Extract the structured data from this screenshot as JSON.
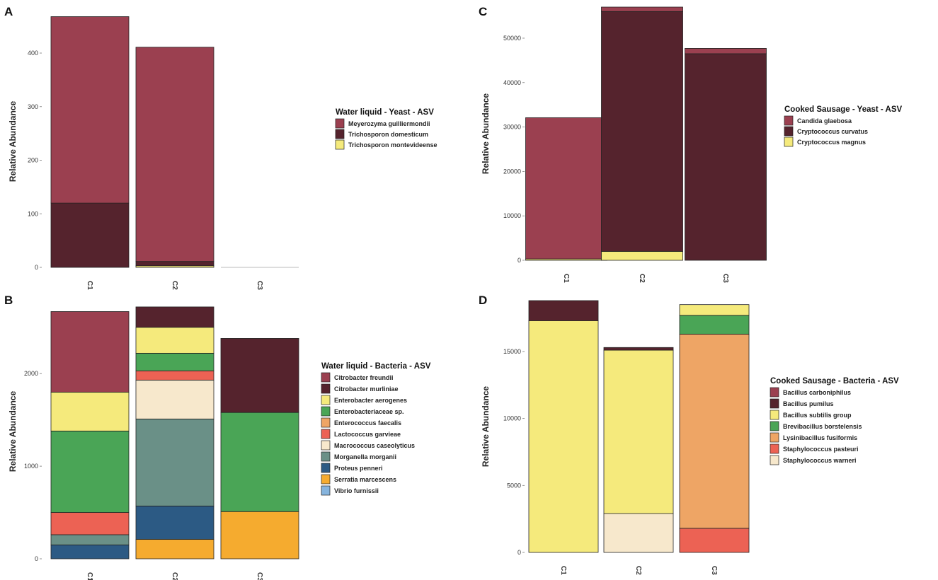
{
  "chart_data": [
    {
      "panel": "A",
      "type": "bar",
      "stacked": true,
      "ylabel": "Relative Abundance",
      "xlabel": "",
      "categories": [
        "C1",
        "C2",
        "C3"
      ],
      "ylim": [
        0,
        470
      ],
      "yticks": [
        0,
        100,
        200,
        300,
        400
      ],
      "legend_title": "Water liquid - Yeast - ASV",
      "legend_position": "right",
      "series": [
        {
          "name": "Meyerozyma guilliermondii",
          "color": "#9b4050",
          "values": [
            348,
            400,
            0
          ]
        },
        {
          "name": "Trichosporon domesticum",
          "color": "#55232d",
          "values": [
            120,
            8,
            0
          ]
        },
        {
          "name": "Trichosporon montevideense",
          "color": "#f5ea7c",
          "values": [
            0,
            3,
            0
          ]
        }
      ]
    },
    {
      "panel": "B",
      "type": "bar",
      "stacked": true,
      "ylabel": "Relative Abundance",
      "xlabel": "",
      "categories": [
        "C1",
        "C2",
        "C3"
      ],
      "ylim": [
        0,
        2750
      ],
      "yticks": [
        0,
        1000,
        2000
      ],
      "legend_title": "Water liquid - Bacteria - ASV",
      "legend_position": "right",
      "series": [
        {
          "name": "Citrobacter freundii",
          "color": "#9b4050",
          "values": [
            870,
            0,
            0
          ]
        },
        {
          "name": "Citrobacter murliniae",
          "color": "#55232d",
          "values": [
            0,
            220,
            800
          ]
        },
        {
          "name": "Enterobacter aerogenes",
          "color": "#f5ea7c",
          "values": [
            420,
            280,
            0
          ]
        },
        {
          "name": "Enterobacteriaceae sp.",
          "color": "#4aa556",
          "values": [
            880,
            190,
            1070
          ]
        },
        {
          "name": "Enterococcus faecalis",
          "color": "#eea565",
          "values": [
            0,
            0,
            0
          ]
        },
        {
          "name": "Lactococcus garvieae",
          "color": "#ec6254",
          "values": [
            240,
            100,
            0
          ]
        },
        {
          "name": "Macrococcus caseolyticus",
          "color": "#f7e8cc",
          "values": [
            0,
            420,
            0
          ]
        },
        {
          "name": "Morganella morganii",
          "color": "#6a9087",
          "values": [
            110,
            940,
            0
          ]
        },
        {
          "name": "Proteus penneri",
          "color": "#2c5a84",
          "values": [
            150,
            360,
            0
          ]
        },
        {
          "name": "Serratia marcescens",
          "color": "#f5ab2f",
          "values": [
            0,
            210,
            510
          ]
        },
        {
          "name": "Vibrio furnissii",
          "color": "#86b4dd",
          "values": [
            0,
            0,
            0
          ]
        }
      ]
    },
    {
      "panel": "C",
      "type": "bar",
      "stacked": true,
      "ylabel": "Relative Abundance",
      "xlabel": "",
      "categories": [
        "C1",
        "C2",
        "C3"
      ],
      "ylim": [
        0,
        57000
      ],
      "yticks": [
        0,
        10000,
        20000,
        30000,
        40000,
        50000
      ],
      "legend_title": "Cooked Sausage - Yeast - ASV",
      "legend_position": "right",
      "series": [
        {
          "name": "Candida glaebosa",
          "color": "#9b4050",
          "values": [
            31800,
            1000,
            1200
          ]
        },
        {
          "name": "Cryptococcus curvatus",
          "color": "#55232d",
          "values": [
            0,
            54000,
            46500
          ]
        },
        {
          "name": "Cryptococcus magnus",
          "color": "#f5ea7c",
          "values": [
            300,
            2000,
            0
          ]
        }
      ]
    },
    {
      "panel": "D",
      "type": "bar",
      "stacked": true,
      "ylabel": "Relative Abundance",
      "xlabel": "",
      "categories": [
        "C1",
        "C2",
        "C3"
      ],
      "ylim": [
        0,
        18800
      ],
      "yticks": [
        0,
        5000,
        10000,
        15000
      ],
      "legend_title": "Cooked Sausage - Bacteria - ASV",
      "legend_position": "right",
      "series": [
        {
          "name": "Bacillus carboniphilus",
          "color": "#9b4050",
          "values": [
            0,
            0,
            0
          ]
        },
        {
          "name": "Bacillus pumilus",
          "color": "#55232d",
          "values": [
            1500,
            200,
            0
          ]
        },
        {
          "name": "Bacillus subtilis group",
          "color": "#f5ea7c",
          "values": [
            17300,
            12200,
            800
          ]
        },
        {
          "name": "Brevibacillus borstelensis",
          "color": "#4aa556",
          "values": [
            0,
            0,
            1400
          ]
        },
        {
          "name": "Lysinibacillus fusiformis",
          "color": "#eea565",
          "values": [
            0,
            0,
            14500
          ]
        },
        {
          "name": "Staphylococcus pasteuri",
          "color": "#ec6254",
          "values": [
            0,
            0,
            1800
          ]
        },
        {
          "name": "Staphylococcus warneri",
          "color": "#f7e8cc",
          "values": [
            0,
            2900,
            0
          ]
        }
      ]
    }
  ]
}
